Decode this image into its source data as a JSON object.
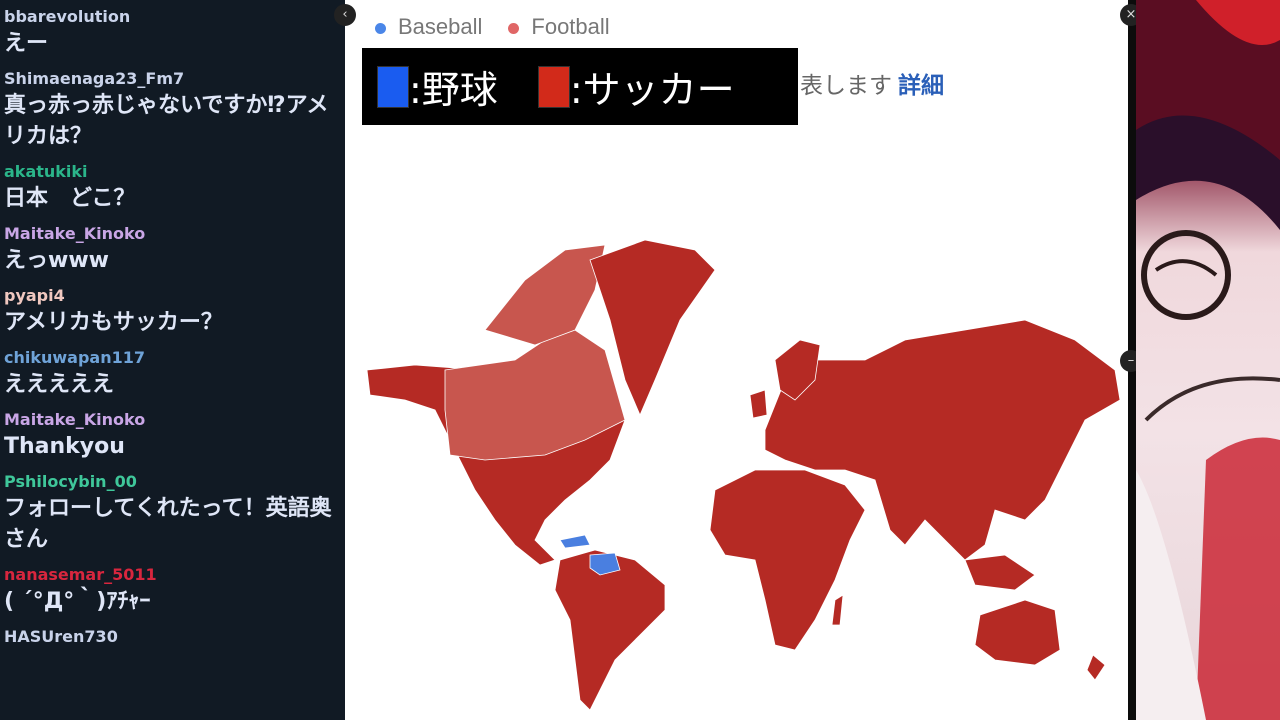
{
  "chat": [
    {
      "user": "bbarevolution",
      "color": "#c9d3ea",
      "text": "えー"
    },
    {
      "user": "Shimaenaga23_Fm7",
      "color": "#c9d3ea",
      "text": "真っ赤っ赤じゃないですか⁉アメリカは？"
    },
    {
      "user": "akatukiki",
      "color": "#2bb58a",
      "text": "日本　どこ？"
    },
    {
      "user": "Maitake_Kinoko",
      "color": "#c9a6e6",
      "text": "えっwww"
    },
    {
      "user": "pyapi4",
      "color": "#f0c8c0",
      "text": "アメリカもサッカー？"
    },
    {
      "user": "chikuwapan117",
      "color": "#6fa3d8",
      "text": "えええええ"
    },
    {
      "user": "Maitake_Kinoko",
      "color": "#c9a6e6",
      "text": "Thankyou"
    },
    {
      "user": "Pshilocybin_00",
      "color": "#3fc79a",
      "text": "フォローしてくれたって！英語奥さん"
    },
    {
      "user": "nanasemar_5011",
      "color": "#d8263e",
      "text": "( ´°Д°｀)ｱﾁｬｰ"
    },
    {
      "user": "HASUren730",
      "color": "#c9d3ea",
      "text": ""
    }
  ],
  "stage": {
    "legend": [
      {
        "label": "Baseball",
        "color": "#4a86e8"
      },
      {
        "label": "Football",
        "color": "#e06666"
      }
    ],
    "jp_legend": [
      {
        "label": ":野球",
        "color": "#1a5cf0"
      },
      {
        "label": ":サッカー",
        "color": "#d22a1a"
      }
    ],
    "note": "表します",
    "details_link": "詳細",
    "map_colors": {
      "football": "#b52a24",
      "football_light": "#c8564e",
      "baseball": "#4a7fe0"
    }
  }
}
